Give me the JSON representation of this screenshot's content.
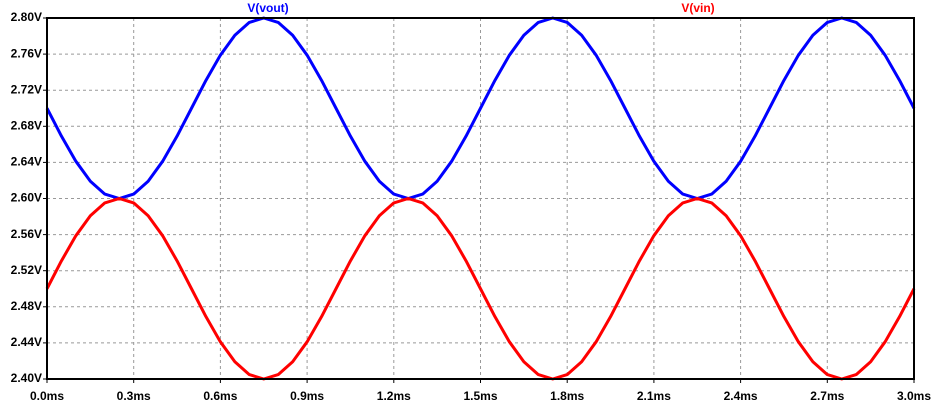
{
  "chart_data": {
    "type": "line",
    "x": [
      0,
      0.05,
      0.1,
      0.15,
      0.2,
      0.25,
      0.3,
      0.35,
      0.4,
      0.45,
      0.5,
      0.55,
      0.6,
      0.65,
      0.7,
      0.75,
      0.8,
      0.85,
      0.9,
      0.95,
      1.0,
      1.05,
      1.1,
      1.15,
      1.2,
      1.25,
      1.3,
      1.35,
      1.4,
      1.45,
      1.5,
      1.55,
      1.6,
      1.65,
      1.7,
      1.75,
      1.8,
      1.85,
      1.9,
      1.95,
      2.0,
      2.05,
      2.1,
      2.15,
      2.2,
      2.25,
      2.3,
      2.35,
      2.4,
      2.45,
      2.5,
      2.55,
      2.6,
      2.65,
      2.7,
      2.75,
      2.8,
      2.85,
      2.9,
      2.95,
      3.0
    ],
    "series": [
      {
        "name": "V(vout)",
        "color": "#0000ff",
        "values": [
          2.7,
          2.6691,
          2.6412,
          2.6191,
          2.6049,
          2.6,
          2.6049,
          2.6191,
          2.6412,
          2.6691,
          2.7,
          2.7309,
          2.7588,
          2.7809,
          2.7951,
          2.8,
          2.7951,
          2.7809,
          2.7588,
          2.7309,
          2.7,
          2.6691,
          2.6412,
          2.6191,
          2.6049,
          2.6,
          2.6049,
          2.6191,
          2.6412,
          2.6691,
          2.7,
          2.7309,
          2.7588,
          2.7809,
          2.7951,
          2.8,
          2.7951,
          2.7809,
          2.7588,
          2.7309,
          2.7,
          2.6691,
          2.6412,
          2.6191,
          2.6049,
          2.6,
          2.6049,
          2.6191,
          2.6412,
          2.6691,
          2.7,
          2.7309,
          2.7588,
          2.7809,
          2.7951,
          2.8,
          2.7951,
          2.7809,
          2.7588,
          2.7309,
          2.7
        ]
      },
      {
        "name": "V(vin)",
        "color": "#ff0000",
        "values": [
          2.5,
          2.5309,
          2.5588,
          2.5809,
          2.5951,
          2.6,
          2.5951,
          2.5809,
          2.5588,
          2.5309,
          2.5,
          2.4691,
          2.4412,
          2.4191,
          2.4049,
          2.4,
          2.4049,
          2.4191,
          2.4412,
          2.4691,
          2.5,
          2.5309,
          2.5588,
          2.5809,
          2.5951,
          2.6,
          2.5951,
          2.5809,
          2.5588,
          2.5309,
          2.5,
          2.4691,
          2.4412,
          2.4191,
          2.4049,
          2.4,
          2.4049,
          2.4191,
          2.4412,
          2.4691,
          2.5,
          2.5309,
          2.5588,
          2.5809,
          2.5951,
          2.6,
          2.5951,
          2.5809,
          2.5588,
          2.5309,
          2.5,
          2.4691,
          2.4412,
          2.4191,
          2.4049,
          2.4,
          2.4049,
          2.4191,
          2.4412,
          2.4691,
          2.5
        ]
      }
    ],
    "xlim": [
      0,
      3.0
    ],
    "xticks": [
      {
        "value": 0,
        "label": "0.0ms"
      },
      {
        "value": 0.3,
        "label": "0.3ms"
      },
      {
        "value": 0.6,
        "label": "0.6ms"
      },
      {
        "value": 0.9,
        "label": "0.9ms"
      },
      {
        "value": 1.2,
        "label": "1.2ms"
      },
      {
        "value": 1.5,
        "label": "1.5ms"
      },
      {
        "value": 1.8,
        "label": "1.8ms"
      },
      {
        "value": 2.1,
        "label": "2.1ms"
      },
      {
        "value": 2.4,
        "label": "2.4ms"
      },
      {
        "value": 2.7,
        "label": "2.7ms"
      },
      {
        "value": 3.0,
        "label": "3.0ms"
      }
    ],
    "ylim": [
      2.4,
      2.8
    ],
    "yticks": [
      {
        "value": 2.4,
        "label": "2.40V"
      },
      {
        "value": 2.44,
        "label": "2.44V"
      },
      {
        "value": 2.48,
        "label": "2.48V"
      },
      {
        "value": 2.52,
        "label": "2.52V"
      },
      {
        "value": 2.56,
        "label": "2.56V"
      },
      {
        "value": 2.6,
        "label": "2.60V"
      },
      {
        "value": 2.64,
        "label": "2.64V"
      },
      {
        "value": 2.68,
        "label": "2.68V"
      },
      {
        "value": 2.72,
        "label": "2.72V"
      },
      {
        "value": 2.76,
        "label": "2.76V"
      },
      {
        "value": 2.8,
        "label": "2.80V"
      }
    ],
    "grid": true
  }
}
